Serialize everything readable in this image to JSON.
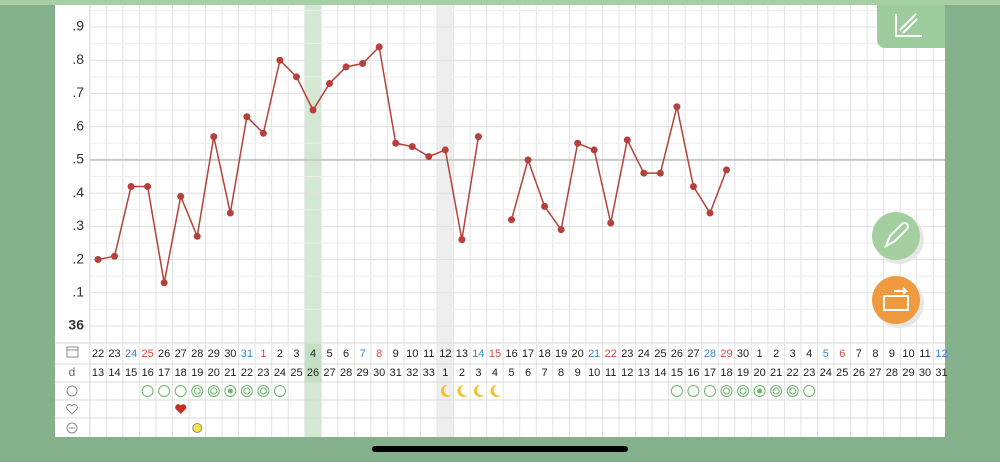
{
  "chart_data": {
    "type": "line",
    "categories": [
      "22",
      "23",
      "24",
      "25",
      "26",
      "27",
      "28",
      "29",
      "30",
      "31",
      "1",
      "2",
      "3",
      "4",
      "5",
      "6",
      "7",
      "8",
      "9",
      "10",
      "11",
      "12",
      "13",
      "14",
      "15",
      "16",
      "17",
      "18",
      "19",
      "20",
      "21",
      "22",
      "23",
      "24",
      "25",
      "26",
      "27",
      "28",
      "29",
      "30",
      "1",
      "2",
      "3",
      "4",
      "5",
      "6",
      "7",
      "8",
      "9",
      "10",
      "11",
      "12"
    ],
    "category_colors": [
      "#222",
      "#222",
      "#3a86d0",
      "#d9483b",
      "#222",
      "#222",
      "#222",
      "#222",
      "#222",
      "#3a86d0",
      "#d9483b",
      "#222",
      "#222",
      "#222",
      "#222",
      "#222",
      "#3a86d0",
      "#d9483b",
      "#222",
      "#222",
      "#222",
      "#222",
      "#222",
      "#3a86d0",
      "#d9483b",
      "#222",
      "#222",
      "#222",
      "#222",
      "#222",
      "#3a86d0",
      "#d9483b",
      "#222",
      "#222",
      "#222",
      "#222",
      "#222",
      "#3a86d0",
      "#d9483b",
      "#222",
      "#222",
      "#222",
      "#222",
      "#222",
      "#3a86d0",
      "#d9483b",
      "#222",
      "#222",
      "#222",
      "#222",
      "#222",
      "#3a86d0"
    ],
    "cycle_days": [
      "13",
      "14",
      "15",
      "16",
      "17",
      "18",
      "19",
      "20",
      "21",
      "22",
      "23",
      "24",
      "25",
      "26",
      "27",
      "28",
      "29",
      "30",
      "31",
      "32",
      "33",
      "1",
      "2",
      "3",
      "4",
      "5",
      "6",
      "7",
      "8",
      "9",
      "10",
      "11",
      "12",
      "13",
      "14",
      "15",
      "16",
      "17",
      "18",
      "19",
      "20",
      "21",
      "22",
      "23",
      "24",
      "25",
      "26",
      "27",
      "28",
      "29",
      "30",
      "31"
    ],
    "row_label": "d",
    "values": [
      36.2,
      36.21,
      36.42,
      36.42,
      36.13,
      36.39,
      36.27,
      36.57,
      36.34,
      36.63,
      36.58,
      36.8,
      36.75,
      36.65,
      36.73,
      36.78,
      36.79,
      36.84,
      36.55,
      36.54,
      36.51,
      36.53,
      36.26,
      36.57,
      null,
      36.32,
      36.5,
      36.36,
      36.29,
      36.55,
      36.53,
      36.31,
      36.56,
      36.46,
      36.46,
      36.66,
      36.42,
      36.34,
      36.47,
      null,
      null,
      null,
      null,
      null,
      null,
      null,
      null,
      null,
      null,
      null,
      null,
      null
    ],
    "color": "#b5413a",
    "ylim": [
      36,
      36.9
    ],
    "yticks": [
      36,
      {
        "value": 36.1,
        "label": ".1"
      },
      {
        "value": 36.2,
        "label": ".2"
      },
      {
        "value": 36.3,
        "label": ".3"
      },
      {
        "value": 36.4,
        "label": ".4"
      },
      {
        "value": 36.5,
        "label": ".5"
      },
      {
        "value": 36.6,
        "label": ".6"
      },
      {
        "value": 36.7,
        "label": ".7"
      },
      {
        "value": 36.8,
        "label": ".8"
      },
      {
        "value": 36.9,
        "label": ".9"
      }
    ],
    "coverline": 36.5,
    "grid": true,
    "highlight_columns": [
      {
        "index": 13,
        "color": "#d3e8d3"
      },
      {
        "index": 21,
        "color": "#eeeeee"
      }
    ]
  }
}
